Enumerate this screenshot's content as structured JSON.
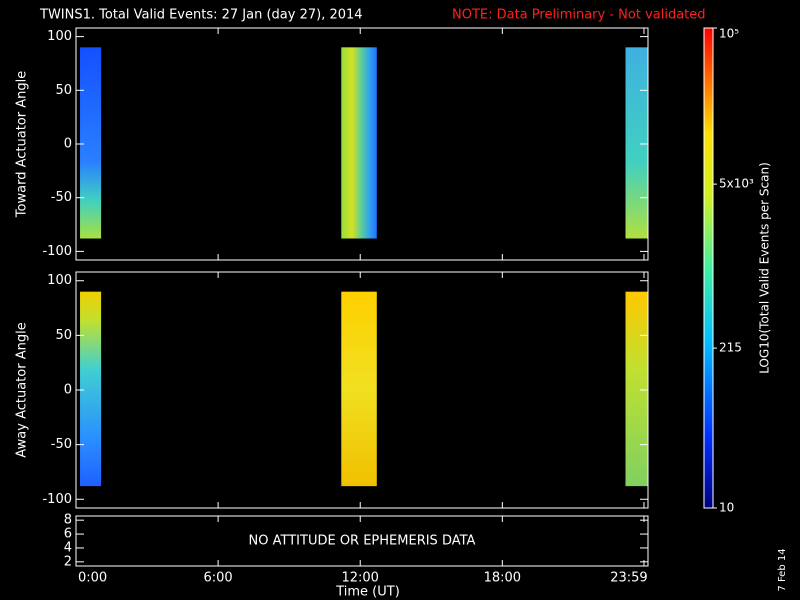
{
  "chart_data": {
    "type": "spectrogram",
    "title": "TWINS1. Total Valid Events: 27 Jan (day  27), 2014",
    "note": "NOTE: Data Preliminary - Not validated",
    "note_color": "#ff2020",
    "xlabel": "Time (UT)",
    "date": "7 Feb 14",
    "xlim": [
      0,
      24.15
    ],
    "xticks": [
      {
        "value": 0,
        "label": "0:00"
      },
      {
        "value": 6,
        "label": "6:00"
      },
      {
        "value": 12,
        "label": "12:00"
      },
      {
        "value": 18,
        "label": "18:00"
      },
      {
        "value": 23.98,
        "label": "23:59"
      }
    ],
    "panels": [
      {
        "type": "heatmap",
        "ylabel": "Toward Actuator Angle",
        "ylim": [
          -108,
          108
        ],
        "yticks": [
          -100,
          -50,
          0,
          50,
          100
        ],
        "segments": [
          {
            "x": [
              0.17,
              1.06
            ],
            "y": [
              -88,
              90
            ]
          },
          {
            "x": [
              11.2,
              12.7
            ],
            "y": [
              -88,
              90
            ]
          },
          {
            "x": [
              23.2,
              24.15
            ],
            "y": [
              -88,
              90
            ]
          }
        ]
      },
      {
        "type": "heatmap",
        "ylabel": "Away Actuator Angle",
        "ylim": [
          -108,
          108
        ],
        "yticks": [
          -100,
          -50,
          0,
          50,
          100
        ],
        "segments": [
          {
            "x": [
              0.17,
              1.06
            ],
            "y": [
              -88,
              90
            ]
          },
          {
            "x": [
              11.2,
              12.7
            ],
            "y": [
              -88,
              90
            ]
          },
          {
            "x": [
              23.2,
              24.15
            ],
            "y": [
              -88,
              90
            ]
          }
        ]
      },
      {
        "type": "text",
        "annotation": "NO ATTITUDE OR EPHEMERIS DATA",
        "ylim": [
          1.4,
          8.6
        ],
        "yticks": [
          2,
          4,
          6,
          8
        ]
      }
    ],
    "colorbar": {
      "label": "LOG10(Total Valid Events per Scan)",
      "log": true,
      "lim": [
        10,
        100000
      ],
      "ticks": [
        {
          "value": 10,
          "label": "10"
        },
        {
          "value": 215,
          "label": "215"
        },
        {
          "value": 5000,
          "label": "5x10³"
        },
        {
          "value": 100000,
          "label": "10⁵"
        }
      ]
    }
  }
}
